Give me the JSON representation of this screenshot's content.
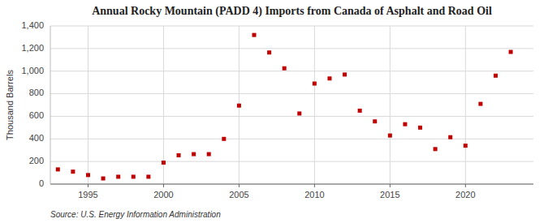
{
  "chart_data": {
    "type": "scatter",
    "title": "Annual Rocky Mountain (PADD 4) Imports from Canada of Asphalt and Road Oil",
    "ylabel": "Thousand Barrels",
    "source": "Source: U.S. Energy Information Administration",
    "x": [
      1993,
      1994,
      1995,
      1996,
      1997,
      1998,
      1999,
      2000,
      2001,
      2002,
      2003,
      2004,
      2005,
      2006,
      2007,
      2008,
      2009,
      2010,
      2011,
      2012,
      2013,
      2014,
      2015,
      2016,
      2017,
      2018,
      2019,
      2020,
      2021,
      2022,
      2023
    ],
    "values": [
      130,
      110,
      80,
      50,
      65,
      65,
      65,
      190,
      255,
      265,
      265,
      400,
      695,
      1320,
      1165,
      1025,
      625,
      890,
      935,
      970,
      650,
      555,
      430,
      530,
      500,
      310,
      415,
      340,
      710,
      960,
      1170
    ],
    "color": "#c00000",
    "marker": "square",
    "xlim": [
      1992.5,
      2024.5
    ],
    "xticks": [
      1995,
      2000,
      2005,
      2010,
      2015,
      2020
    ],
    "ylim": [
      0,
      1400
    ],
    "yticks": [
      0,
      200,
      400,
      600,
      800,
      {
        "value": 1000,
        "label": "1,000"
      },
      {
        "value": 1200,
        "label": "1,200"
      },
      {
        "value": 1400,
        "label": "1,400"
      }
    ],
    "grid": true
  }
}
